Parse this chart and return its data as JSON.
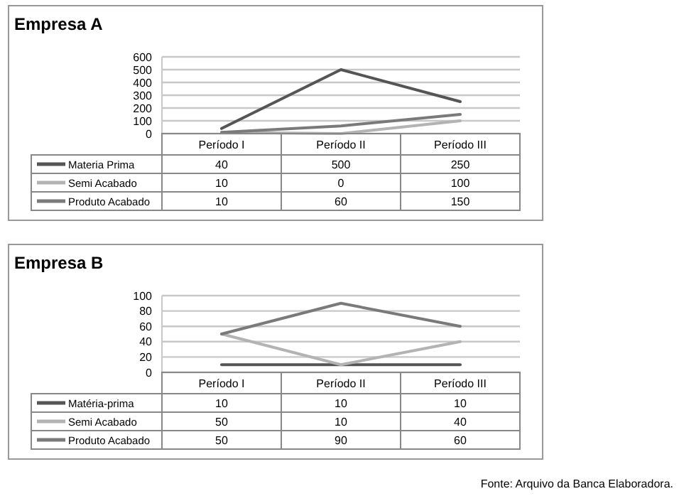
{
  "chart_data": [
    {
      "type": "line",
      "title": "Empresa A",
      "categories": [
        "Período I",
        "Período II",
        "Período III"
      ],
      "ylim": [
        0,
        600
      ],
      "yticks": [
        0,
        100,
        200,
        300,
        400,
        500,
        600
      ],
      "grid": "y",
      "legend": "bottom",
      "data_labels": true,
      "series": [
        {
          "name": "Materia Prima",
          "color": "#555555",
          "values": [
            40,
            500,
            250
          ]
        },
        {
          "name": "Semi Acabado",
          "color": "#b3b3b3",
          "values": [
            10,
            0,
            100
          ]
        },
        {
          "name": "Produto Acabado",
          "color": "#7a7a7a",
          "values": [
            10,
            60,
            150
          ]
        }
      ]
    },
    {
      "type": "line",
      "title": "Empresa B",
      "categories": [
        "Período I",
        "Período II",
        "Período III"
      ],
      "ylim": [
        0,
        100
      ],
      "yticks": [
        0,
        20,
        40,
        60,
        80,
        100
      ],
      "grid": "y",
      "legend": "bottom",
      "data_labels": true,
      "annotations": [
        "Fonte: Arquivo da Banca Elaboradora."
      ],
      "series": [
        {
          "name": "Matéria-prima",
          "color": "#555555",
          "values": [
            10,
            10,
            10
          ]
        },
        {
          "name": "Semi Acabado",
          "color": "#b3b3b3",
          "values": [
            50,
            10,
            40
          ]
        },
        {
          "name": "Produto Acabado",
          "color": "#7a7a7a",
          "values": [
            50,
            90,
            60
          ]
        }
      ]
    }
  ]
}
